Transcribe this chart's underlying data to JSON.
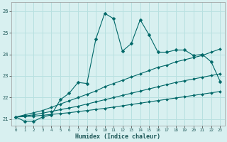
{
  "xlabel": "Humidex (Indice chaleur)",
  "bg_color": "#d8f0f0",
  "grid_color": "#b8e0e0",
  "line_color": "#006868",
  "xlim": [
    -0.5,
    23.5
  ],
  "ylim": [
    20.7,
    26.4
  ],
  "xticks": [
    0,
    1,
    2,
    3,
    4,
    5,
    6,
    7,
    8,
    9,
    10,
    11,
    12,
    13,
    14,
    15,
    16,
    17,
    18,
    19,
    20,
    21,
    22,
    23
  ],
  "yticks": [
    21,
    22,
    23,
    24,
    25,
    26
  ],
  "main_x": [
    0,
    1,
    2,
    3,
    4,
    5,
    6,
    7,
    8,
    9,
    10,
    11,
    12,
    13,
    14,
    15,
    16,
    17,
    18,
    19,
    20,
    21,
    22,
    23
  ],
  "main_y": [
    21.1,
    20.9,
    20.9,
    21.1,
    21.2,
    21.9,
    22.2,
    22.7,
    22.65,
    24.7,
    25.9,
    25.65,
    24.15,
    24.5,
    25.6,
    24.9,
    24.1,
    24.1,
    24.2,
    24.2,
    23.95,
    24.0,
    23.65,
    22.75
  ],
  "line2_x": [
    0,
    1,
    2,
    3,
    4,
    5,
    6,
    7,
    8,
    9,
    10,
    11,
    12,
    13,
    14,
    15,
    16,
    17,
    18,
    19,
    20,
    21,
    22,
    23
  ],
  "line2_y": [
    21.1,
    21.2,
    21.3,
    21.4,
    21.55,
    21.7,
    21.85,
    22.0,
    22.15,
    22.3,
    22.5,
    22.65,
    22.8,
    22.95,
    23.1,
    23.25,
    23.4,
    23.5,
    23.65,
    23.75,
    23.85,
    23.95,
    24.1,
    24.25
  ],
  "line3_x": [
    0,
    1,
    2,
    3,
    4,
    5,
    6,
    7,
    8,
    9,
    10,
    11,
    12,
    13,
    14,
    15,
    16,
    17,
    18,
    19,
    20,
    21,
    22,
    23
  ],
  "line3_y": [
    21.1,
    21.15,
    21.2,
    21.28,
    21.36,
    21.44,
    21.52,
    21.6,
    21.7,
    21.8,
    21.9,
    22.0,
    22.1,
    22.2,
    22.3,
    22.4,
    22.5,
    22.6,
    22.7,
    22.78,
    22.86,
    22.94,
    23.02,
    23.1
  ],
  "line4_x": [
    0,
    1,
    2,
    3,
    4,
    5,
    6,
    7,
    8,
    9,
    10,
    11,
    12,
    13,
    14,
    15,
    16,
    17,
    18,
    19,
    20,
    21,
    22,
    23
  ],
  "line4_y": [
    21.1,
    21.12,
    21.14,
    21.18,
    21.22,
    21.26,
    21.3,
    21.35,
    21.4,
    21.45,
    21.5,
    21.56,
    21.62,
    21.68,
    21.74,
    21.8,
    21.86,
    21.92,
    21.98,
    22.04,
    22.1,
    22.16,
    22.22,
    22.28
  ]
}
